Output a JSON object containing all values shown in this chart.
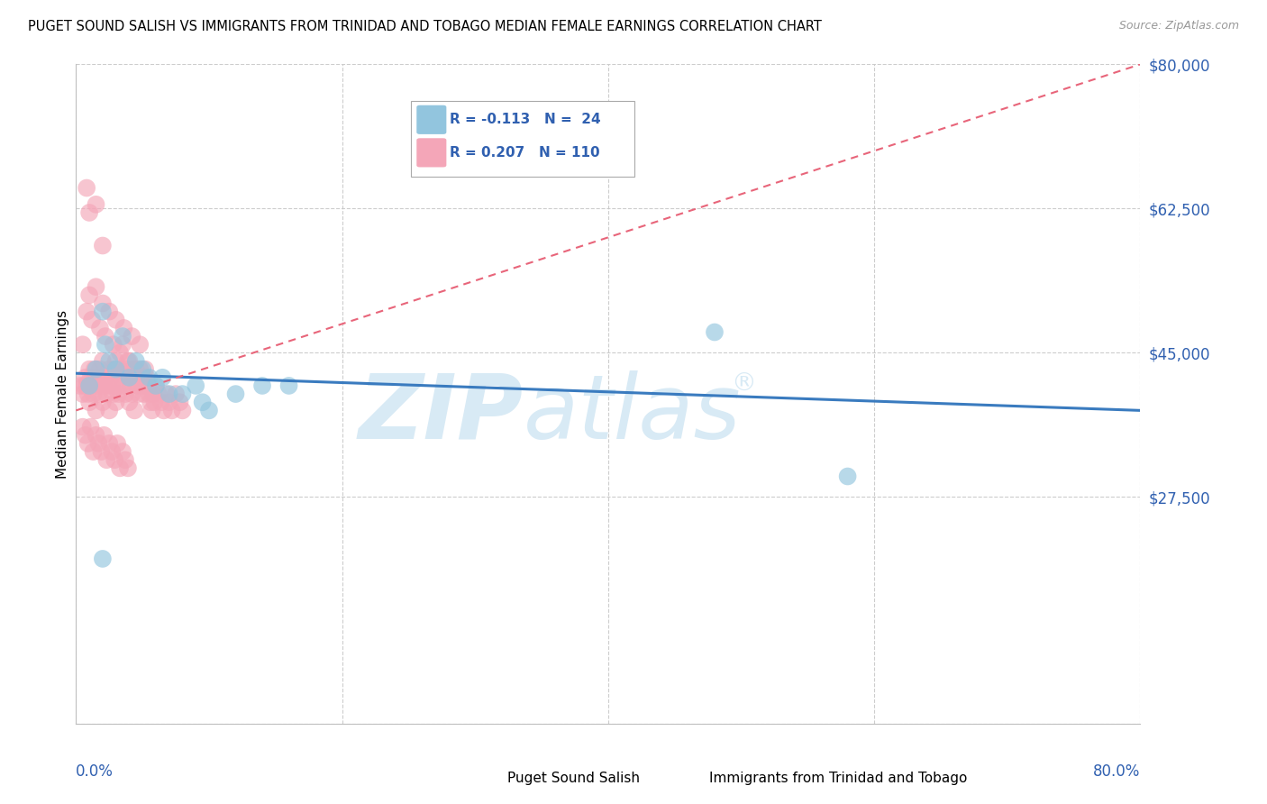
{
  "title": "PUGET SOUND SALISH VS IMMIGRANTS FROM TRINIDAD AND TOBAGO MEDIAN FEMALE EARNINGS CORRELATION CHART",
  "source": "Source: ZipAtlas.com",
  "xlabel_bottom_left": "0.0%",
  "xlabel_bottom_right": "80.0%",
  "ylabel": "Median Female Earnings",
  "yticks": [
    0,
    27500,
    45000,
    62500,
    80000
  ],
  "ytick_labels": [
    "",
    "$27,500",
    "$45,000",
    "$62,500",
    "$80,000"
  ],
  "xmin": 0.0,
  "xmax": 0.8,
  "ymin": 0,
  "ymax": 80000,
  "legend_r1": "R = -0.113",
  "legend_n1": "N =  24",
  "legend_r2": "R = 0.207",
  "legend_n2": "N = 110",
  "color_blue": "#92c5de",
  "color_pink": "#f4a6b8",
  "color_blue_line": "#3a7bbf",
  "color_pink_line": "#e8657a",
  "color_text_blue": "#3060b0",
  "watermark_color": "#d8eaf5",
  "blue_scatter_x": [
    0.01,
    0.015,
    0.02,
    0.022,
    0.025,
    0.03,
    0.035,
    0.04,
    0.045,
    0.05,
    0.055,
    0.06,
    0.065,
    0.07,
    0.08,
    0.09,
    0.095,
    0.1,
    0.12,
    0.14,
    0.16,
    0.48,
    0.02,
    0.58
  ],
  "blue_scatter_y": [
    41000,
    43000,
    50000,
    46000,
    44000,
    43000,
    47000,
    42000,
    44000,
    43000,
    42000,
    41000,
    42000,
    40000,
    40000,
    41000,
    39000,
    38000,
    40000,
    41000,
    41000,
    47500,
    20000,
    30000
  ],
  "pink_scatter_x": [
    0.003,
    0.005,
    0.006,
    0.007,
    0.008,
    0.009,
    0.01,
    0.01,
    0.011,
    0.012,
    0.013,
    0.014,
    0.015,
    0.015,
    0.016,
    0.017,
    0.018,
    0.019,
    0.02,
    0.02,
    0.021,
    0.022,
    0.023,
    0.024,
    0.025,
    0.025,
    0.026,
    0.027,
    0.028,
    0.029,
    0.03,
    0.03,
    0.031,
    0.032,
    0.033,
    0.034,
    0.035,
    0.036,
    0.037,
    0.038,
    0.039,
    0.04,
    0.04,
    0.041,
    0.042,
    0.043,
    0.044,
    0.045,
    0.046,
    0.047,
    0.048,
    0.049,
    0.05,
    0.051,
    0.052,
    0.053,
    0.054,
    0.055,
    0.056,
    0.057,
    0.058,
    0.059,
    0.06,
    0.062,
    0.064,
    0.066,
    0.068,
    0.07,
    0.072,
    0.075,
    0.078,
    0.08,
    0.005,
    0.008,
    0.01,
    0.012,
    0.015,
    0.018,
    0.02,
    0.022,
    0.025,
    0.028,
    0.03,
    0.033,
    0.036,
    0.039,
    0.042,
    0.045,
    0.048,
    0.051,
    0.005,
    0.007,
    0.009,
    0.011,
    0.013,
    0.015,
    0.017,
    0.019,
    0.021,
    0.023,
    0.025,
    0.027,
    0.029,
    0.031,
    0.033,
    0.035,
    0.037,
    0.039,
    0.008,
    0.01,
    0.015,
    0.02
  ],
  "pink_scatter_y": [
    41000,
    40000,
    41000,
    42000,
    41000,
    40000,
    43000,
    39000,
    42000,
    41000,
    40000,
    43000,
    42000,
    38000,
    41000,
    40000,
    43000,
    42000,
    44000,
    39000,
    41000,
    42000,
    40000,
    41000,
    43000,
    38000,
    42000,
    41000,
    40000,
    43000,
    44000,
    39000,
    41000,
    40000,
    43000,
    42000,
    46000,
    41000,
    40000,
    43000,
    42000,
    44000,
    39000,
    41000,
    40000,
    43000,
    38000,
    42000,
    41000,
    40000,
    43000,
    42000,
    41000,
    40000,
    43000,
    42000,
    41000,
    40000,
    39000,
    38000,
    40000,
    39000,
    41000,
    40000,
    39000,
    38000,
    40000,
    39000,
    38000,
    40000,
    39000,
    38000,
    46000,
    50000,
    52000,
    49000,
    53000,
    48000,
    51000,
    47000,
    50000,
    46000,
    49000,
    45000,
    48000,
    44000,
    47000,
    43000,
    46000,
    42000,
    36000,
    35000,
    34000,
    36000,
    33000,
    35000,
    34000,
    33000,
    35000,
    32000,
    34000,
    33000,
    32000,
    34000,
    31000,
    33000,
    32000,
    31000,
    65000,
    62000,
    63000,
    58000
  ],
  "blue_trend_x": [
    0.0,
    0.8
  ],
  "blue_trend_y": [
    42500,
    38000
  ],
  "pink_trend_x": [
    0.0,
    0.8
  ],
  "pink_trend_y": [
    38000,
    80000
  ]
}
